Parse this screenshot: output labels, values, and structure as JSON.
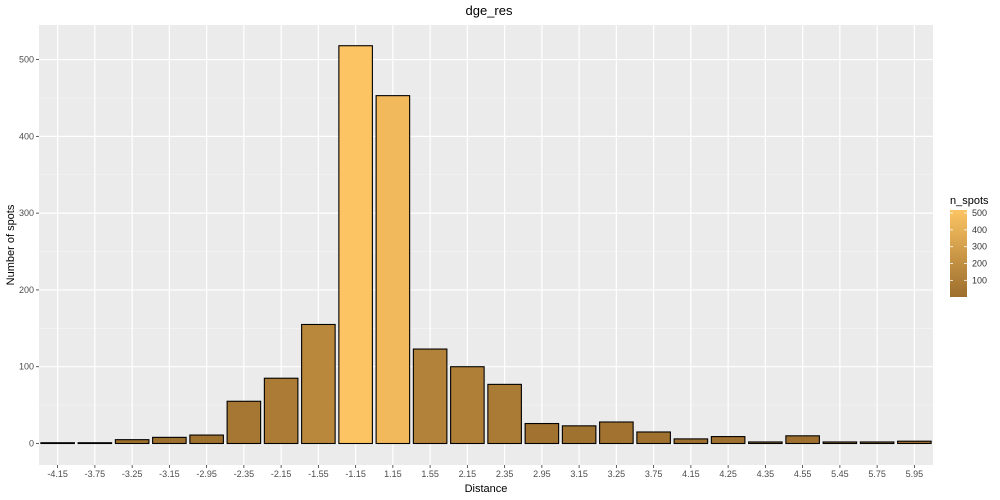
{
  "chart_data": {
    "type": "bar",
    "title": "dge_res",
    "xlabel": "Distance",
    "ylabel": "Number of spots",
    "categories": [
      "-4.15",
      "-3.75",
      "-3.25",
      "-3.15",
      "-2.95",
      "-2.35",
      "-2.15",
      "-1.55",
      "-1.15",
      "1.15",
      "1.55",
      "2.15",
      "2.35",
      "2.95",
      "3.15",
      "3.25",
      "3.75",
      "4.15",
      "4.25",
      "4.35",
      "4.55",
      "5.45",
      "5.75",
      "5.95"
    ],
    "values": [
      1,
      1,
      5,
      8,
      11,
      55,
      85,
      155,
      518,
      453,
      123,
      100,
      77,
      26,
      23,
      28,
      15,
      6,
      9,
      2,
      10,
      2,
      2,
      3
    ],
    "ylim": [
      -28,
      545
    ],
    "yticks": [
      0,
      100,
      200,
      300,
      400,
      500
    ],
    "grid": true,
    "panel_background": "#ebebeb",
    "bar_outline": "#000000",
    "legend": {
      "title": "n_spots",
      "position": "right",
      "ticks": [
        100,
        200,
        300,
        400,
        500
      ],
      "range": [
        1,
        518
      ],
      "color_low": "#9c6e2d",
      "color_high": "#fdc463"
    }
  }
}
